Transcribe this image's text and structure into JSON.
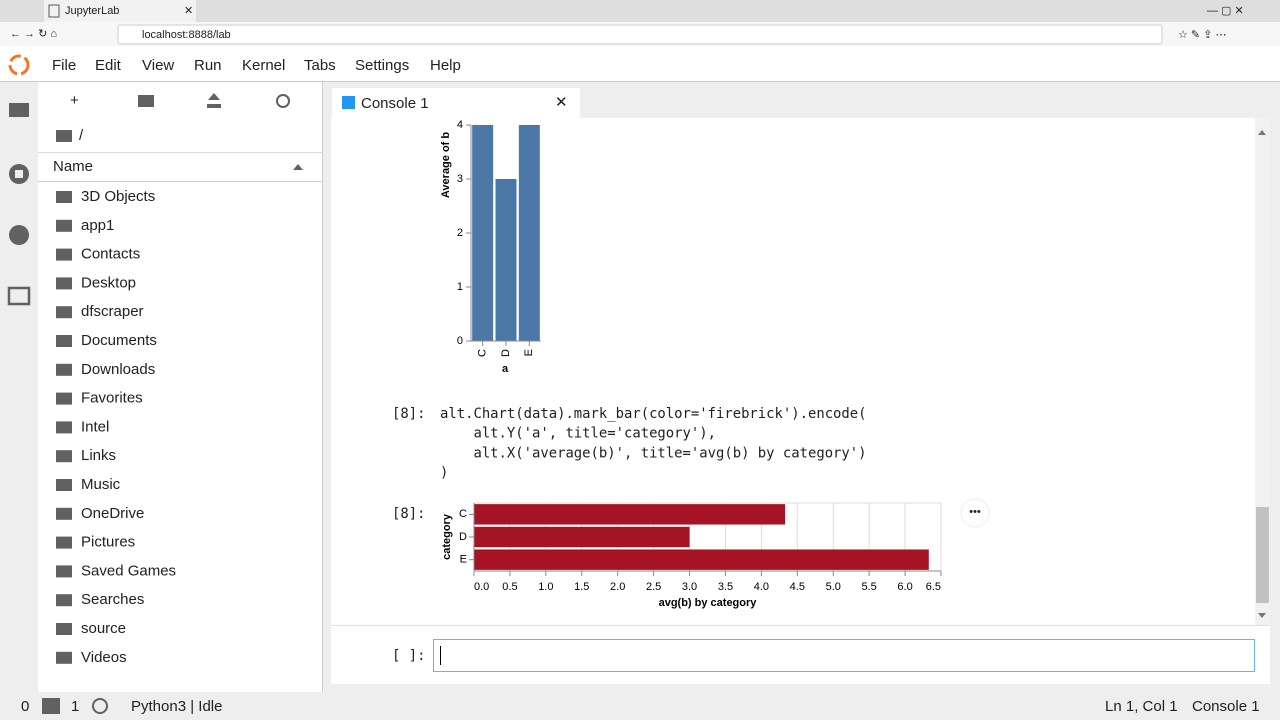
{
  "browser": {
    "tab_title": "JupyterLab",
    "url": "localhost:8888/lab"
  },
  "menu": [
    "File",
    "Edit",
    "View",
    "Run",
    "Kernel",
    "Tabs",
    "Settings",
    "Help"
  ],
  "file_browser": {
    "path": "/",
    "column_header": "Name",
    "items": [
      "3D Objects",
      "app1",
      "Contacts",
      "Desktop",
      "dfscraper",
      "Documents",
      "Downloads",
      "Favorites",
      "Intel",
      "Links",
      "Music",
      "OneDrive",
      "Pictures",
      "Saved Games",
      "Searches",
      "source",
      "Videos"
    ]
  },
  "console": {
    "tab_title": "Console 1",
    "cell_prompt": "[8]:",
    "code": [
      "alt.Chart(data).mark_bar(color='firebrick').encode(",
      "    alt.Y('a', title='category'),",
      "    alt.X('average(b)', title='avg(b) by category')",
      ")"
    ],
    "output_prompt": "[8]:",
    "input_prompt": "[ ]:"
  },
  "chart_data": [
    {
      "type": "bar",
      "orientation": "vertical",
      "x_label": "a",
      "y_label": "Average of b",
      "categories": [
        "C",
        "D",
        "E"
      ],
      "values": [
        4,
        3,
        4
      ],
      "color": "#4c78a8",
      "ylim": [
        0,
        4
      ],
      "yticks": [
        0,
        1,
        2,
        3,
        4
      ]
    },
    {
      "type": "bar",
      "orientation": "horizontal",
      "x_label": "avg(b) by category",
      "y_label": "category",
      "categories": [
        "C",
        "D",
        "E"
      ],
      "values": [
        4.33,
        3,
        6.33
      ],
      "color": "#a51424",
      "xlim": [
        0,
        6.5
      ],
      "xticks": [
        {
          "value": 0,
          "label": "0.0"
        },
        0.5,
        {
          "value": 1,
          "label": "1.0"
        },
        1.5,
        {
          "value": 2,
          "label": "2.0"
        },
        2.5,
        {
          "value": 3,
          "label": "3.0"
        },
        3.5,
        {
          "value": 4,
          "label": "4.0"
        },
        4.5,
        {
          "value": 5,
          "label": "5.0"
        },
        5.5,
        {
          "value": 6,
          "label": "6.0"
        },
        6.5
      ],
      "grid": true
    }
  ],
  "status_bar": {
    "terminals": 0,
    "kernels": 1,
    "kernel_status": "Python3 | Idle",
    "cursor": "Ln 1, Col 1",
    "active": "Console 1"
  }
}
